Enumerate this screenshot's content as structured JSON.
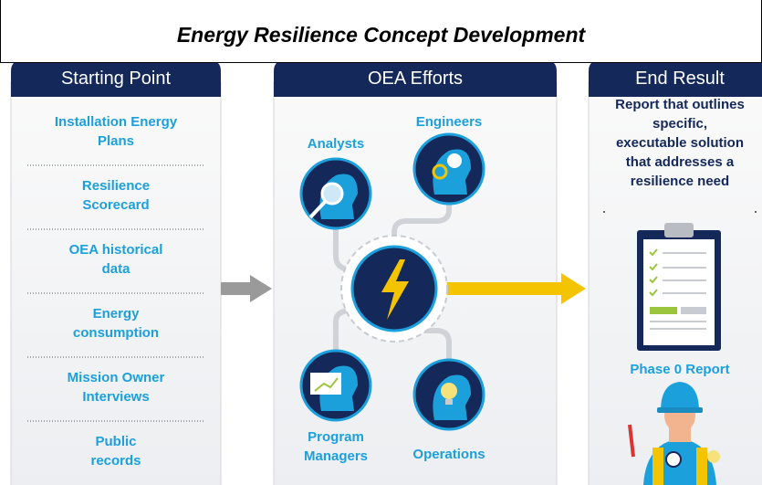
{
  "title": "Energy Resilience Concept Development",
  "columns": [
    {
      "header": "Starting Point",
      "items": [
        [
          "Installation Energy",
          "Plans"
        ],
        [
          "Resilience",
          "Scorecard"
        ],
        [
          "OEA historical",
          "data"
        ],
        [
          "Energy",
          "consumption"
        ],
        [
          "Mission Owner",
          "Interviews"
        ],
        [
          "Public",
          "records"
        ]
      ]
    },
    {
      "header": "OEA Efforts",
      "items": [
        [
          "Analysts"
        ],
        [
          "Engineers"
        ],
        [
          "Program",
          "Managers"
        ],
        [
          "Operations"
        ]
      ]
    },
    {
      "header": "End Result",
      "description": [
        "Report that outlines",
        "specific,",
        "executable solution",
        "that addresses a",
        "resilience need"
      ],
      "caption": "Phase 0 Report"
    }
  ]
}
